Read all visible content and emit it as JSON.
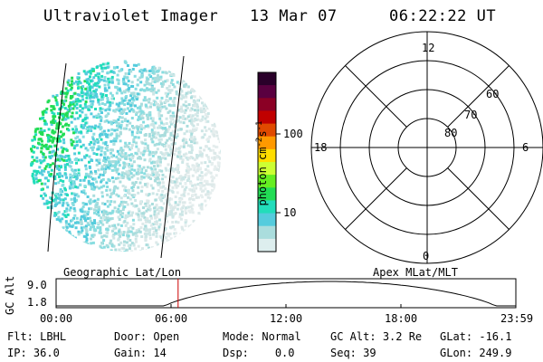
{
  "header": {
    "instrument": "Ultraviolet Imager",
    "date": "13 Mar 07",
    "time": "06:22:22 UT"
  },
  "colorbar": {
    "ticks": [
      {
        "label": "100",
        "value": 100
      },
      {
        "label": "10",
        "value": 10
      }
    ],
    "unit": "photon cm",
    "unit_sup1": "-2",
    "unit_mid": "s",
    "unit_sup2": "-1",
    "colors_top_to_bottom": [
      "#2a002a",
      "#5a0040",
      "#8b0025",
      "#c00000",
      "#e04a00",
      "#ff9900",
      "#ffdd00",
      "#ccff33",
      "#66ee22",
      "#22dd55",
      "#22ddbb",
      "#55ccdd",
      "#aadddd",
      "#ddeeee"
    ]
  },
  "polar": {
    "labels": {
      "top": "12",
      "left": "18",
      "right": "6",
      "bottom": "0"
    },
    "rings": [
      {
        "label": "60",
        "lat": 60
      },
      {
        "label": "70",
        "lat": 70
      },
      {
        "label": "80",
        "lat": 80
      }
    ]
  },
  "timeline": {
    "axis_label": "GC Alt",
    "y_max": "9.0",
    "y_min": "1.8",
    "left_caption": "Geographic Lat/Lon",
    "right_caption": "Apex MLat/MLT",
    "x_ticks": [
      "00:00",
      "06:00",
      "12:00",
      "18:00",
      "23:59"
    ],
    "current_time_hours": 6.37
  },
  "info": {
    "row1": [
      {
        "key": "Flt:",
        "val": "LBHL"
      },
      {
        "key": "Door:",
        "val": "Open"
      },
      {
        "key": "Mode:",
        "val": "Normal"
      },
      {
        "key": "GC Alt:",
        "val": "3.2 Re"
      },
      {
        "key": "GLat:",
        "val": "-16.1"
      }
    ],
    "row2": [
      {
        "key": "IP:",
        "val": "36.0"
      },
      {
        "key": "Gain:",
        "val": "14"
      },
      {
        "key": "Dsp:",
        "val": "0.0"
      },
      {
        "key": "Seq:",
        "val": "39"
      },
      {
        "key": "GLon:",
        "val": "249.9"
      }
    ]
  }
}
